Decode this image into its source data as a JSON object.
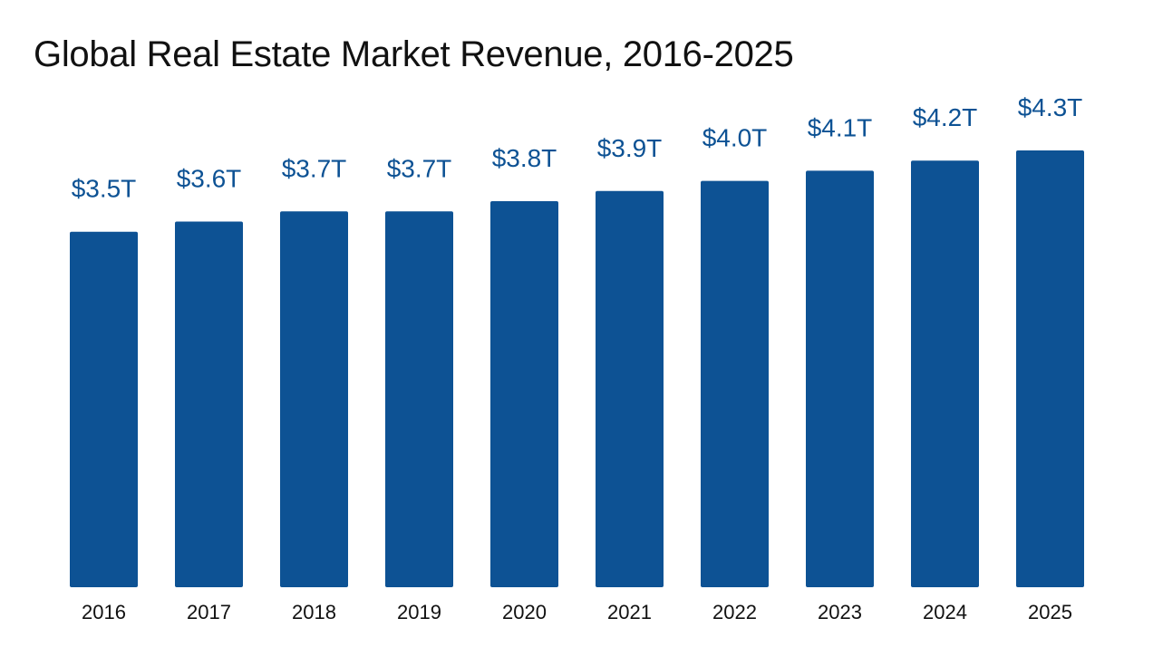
{
  "chart_data": {
    "type": "bar",
    "title": "Global Real Estate Market Revenue, 2016-2025",
    "categories": [
      "2016",
      "2017",
      "2018",
      "2019",
      "2020",
      "2021",
      "2022",
      "2023",
      "2024",
      "2025"
    ],
    "values": [
      3.5,
      3.6,
      3.7,
      3.7,
      3.8,
      3.9,
      4.0,
      4.1,
      4.2,
      4.3
    ],
    "data_labels": [
      "$3.5T",
      "$3.6T",
      "$3.7T",
      "$3.7T",
      "$3.8T",
      "$3.9T",
      "$4.0T",
      "$4.1T",
      "$4.2T",
      "$4.3T"
    ],
    "xlabel": "",
    "ylabel": "",
    "ylim": [
      0,
      4.3
    ],
    "grid": false,
    "legend": "none",
    "bar_color": "#0d5294",
    "label_color": "#0d5294",
    "tick_color": "#111111"
  }
}
